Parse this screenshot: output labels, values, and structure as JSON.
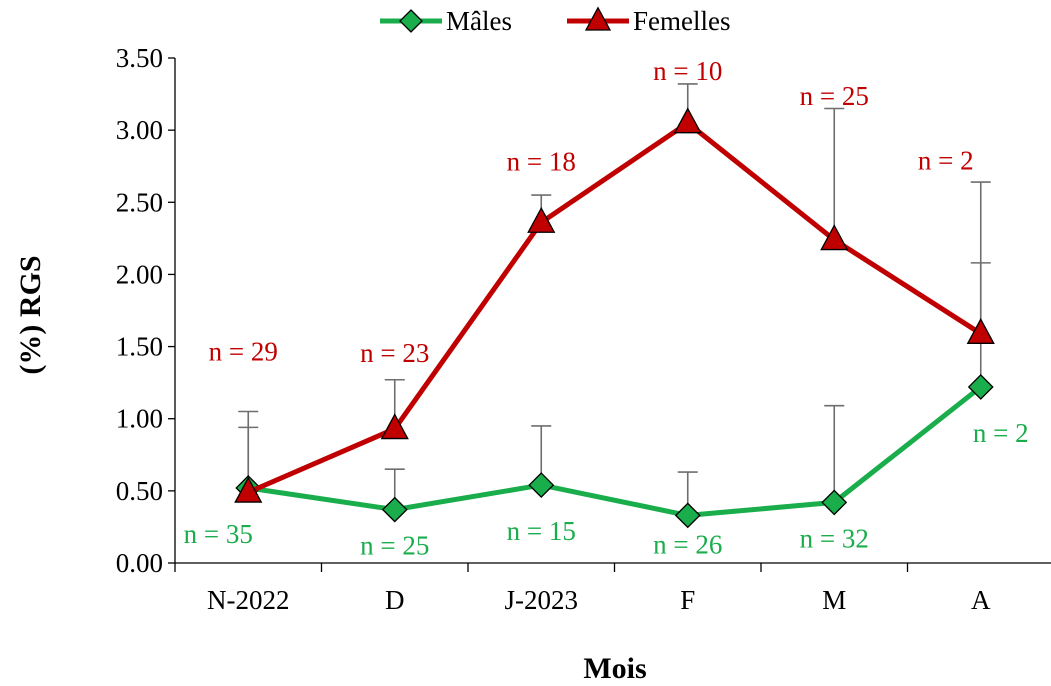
{
  "chart_data": {
    "type": "line",
    "xlabel": "Mois",
    "ylabel": "(%) RGS",
    "categories": [
      "N-2022",
      "D",
      "J-2023",
      "F",
      "M",
      "A"
    ],
    "ylim": [
      0,
      3.5
    ],
    "yticks": [
      "0.00",
      "0.50",
      "1.00",
      "1.50",
      "2.00",
      "2.50",
      "3.00",
      "3.50"
    ],
    "grid": false,
    "legend_position": "top-center",
    "series": [
      {
        "name": "Mâles",
        "color": "#1aad4b",
        "marker": "diamond",
        "values": [
          0.52,
          0.37,
          0.54,
          0.33,
          0.42,
          1.22
        ],
        "error_upper": [
          1.05,
          0.65,
          0.95,
          0.63,
          1.09,
          2.08
        ],
        "n_labels": [
          "n = 35",
          "n = 25",
          "n = 15",
          "n = 26",
          "n = 32",
          "n = 2"
        ]
      },
      {
        "name": "Femelles",
        "color": "#c00000",
        "marker": "triangle",
        "values": [
          0.49,
          0.93,
          2.36,
          3.05,
          2.24,
          1.59
        ],
        "error_upper": [
          0.94,
          1.27,
          2.55,
          3.32,
          3.15,
          2.64
        ],
        "n_labels": [
          "n = 29",
          "n = 23",
          "n = 18",
          "n = 10",
          "n = 25",
          "n = 2"
        ]
      }
    ]
  }
}
